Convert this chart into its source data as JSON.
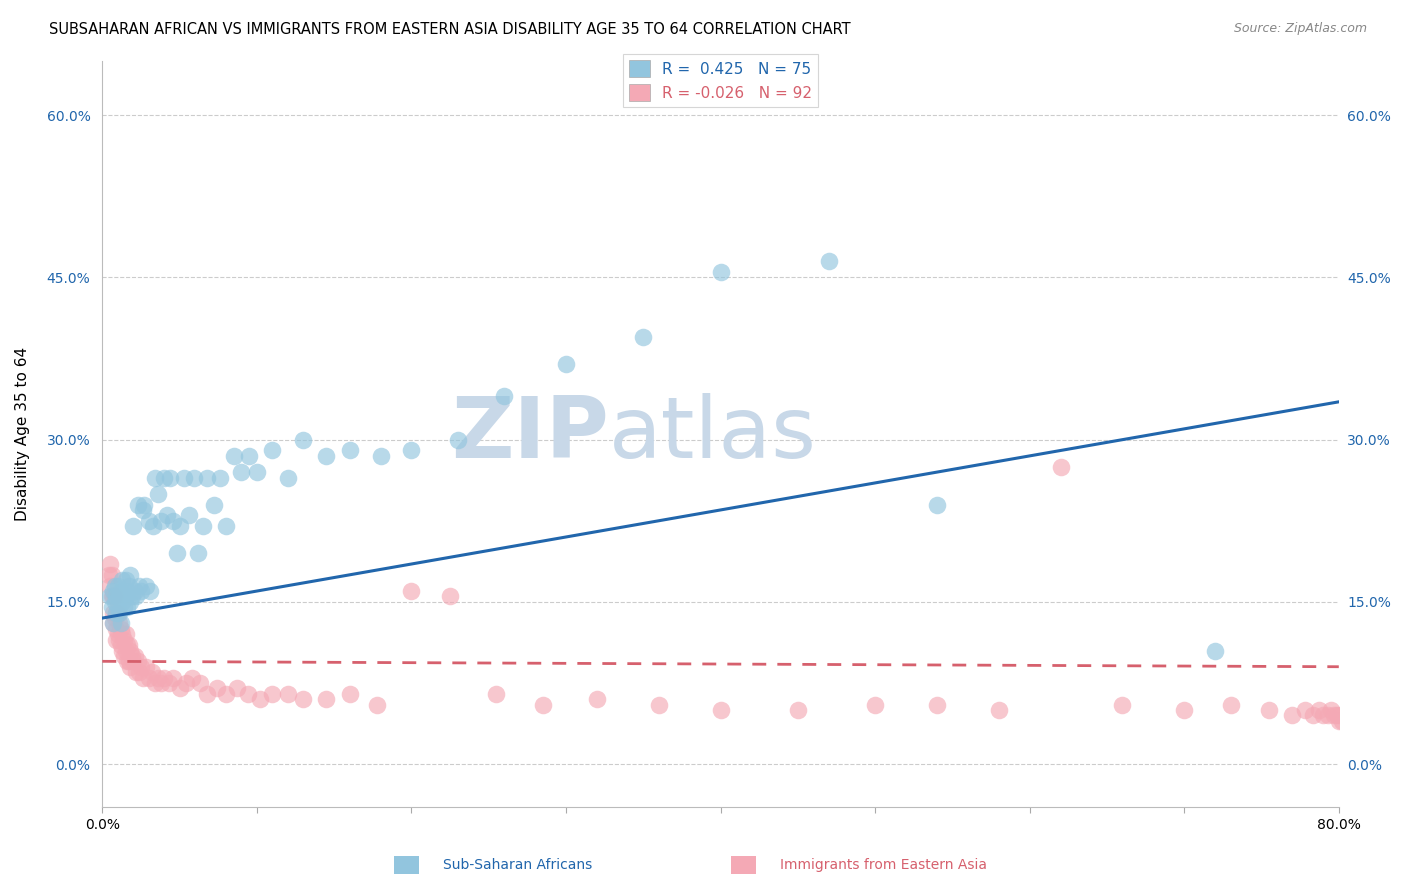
{
  "title": "SUBSAHARAN AFRICAN VS IMMIGRANTS FROM EASTERN ASIA DISABILITY AGE 35 TO 64 CORRELATION CHART",
  "source": "Source: ZipAtlas.com",
  "ylabel": "Disability Age 35 to 64",
  "ylabel_ticks": [
    "0.0%",
    "15.0%",
    "30.0%",
    "45.0%",
    "60.0%"
  ],
  "yticks": [
    0.0,
    0.15,
    0.3,
    0.45,
    0.6
  ],
  "xmin": 0.0,
  "xmax": 0.8,
  "ymin": -0.04,
  "ymax": 0.65,
  "blue_color": "#92c5de",
  "pink_color": "#f4a9b5",
  "blue_line_color": "#2166ac",
  "pink_line_color": "#d6606d",
  "watermark_color": "#c8d8e8",
  "r_blue": 0.425,
  "n_blue": 75,
  "r_pink": -0.026,
  "n_pink": 92,
  "blue_scatter_x": [
    0.005,
    0.006,
    0.007,
    0.007,
    0.008,
    0.008,
    0.009,
    0.009,
    0.01,
    0.01,
    0.011,
    0.011,
    0.012,
    0.012,
    0.013,
    0.013,
    0.014,
    0.014,
    0.015,
    0.015,
    0.016,
    0.016,
    0.017,
    0.018,
    0.018,
    0.019,
    0.02,
    0.021,
    0.022,
    0.023,
    0.024,
    0.025,
    0.026,
    0.027,
    0.028,
    0.03,
    0.031,
    0.033,
    0.034,
    0.036,
    0.038,
    0.04,
    0.042,
    0.044,
    0.046,
    0.048,
    0.05,
    0.053,
    0.056,
    0.059,
    0.062,
    0.065,
    0.068,
    0.072,
    0.076,
    0.08,
    0.085,
    0.09,
    0.095,
    0.1,
    0.11,
    0.12,
    0.13,
    0.145,
    0.16,
    0.18,
    0.2,
    0.23,
    0.26,
    0.3,
    0.35,
    0.4,
    0.47,
    0.54,
    0.72
  ],
  "blue_scatter_y": [
    0.155,
    0.145,
    0.16,
    0.13,
    0.15,
    0.165,
    0.14,
    0.155,
    0.145,
    0.165,
    0.155,
    0.14,
    0.16,
    0.13,
    0.15,
    0.17,
    0.145,
    0.155,
    0.17,
    0.155,
    0.16,
    0.145,
    0.165,
    0.15,
    0.175,
    0.155,
    0.22,
    0.16,
    0.155,
    0.24,
    0.165,
    0.16,
    0.235,
    0.24,
    0.165,
    0.225,
    0.16,
    0.22,
    0.265,
    0.25,
    0.225,
    0.265,
    0.23,
    0.265,
    0.225,
    0.195,
    0.22,
    0.265,
    0.23,
    0.265,
    0.195,
    0.22,
    0.265,
    0.24,
    0.265,
    0.22,
    0.285,
    0.27,
    0.285,
    0.27,
    0.29,
    0.265,
    0.3,
    0.285,
    0.29,
    0.285,
    0.29,
    0.3,
    0.34,
    0.37,
    0.395,
    0.455,
    0.465,
    0.24,
    0.105
  ],
  "pink_scatter_x": [
    0.004,
    0.005,
    0.005,
    0.006,
    0.006,
    0.007,
    0.007,
    0.007,
    0.008,
    0.008,
    0.009,
    0.009,
    0.009,
    0.01,
    0.01,
    0.011,
    0.011,
    0.012,
    0.012,
    0.013,
    0.013,
    0.014,
    0.014,
    0.015,
    0.015,
    0.016,
    0.016,
    0.017,
    0.017,
    0.018,
    0.018,
    0.019,
    0.02,
    0.021,
    0.022,
    0.023,
    0.024,
    0.025,
    0.026,
    0.028,
    0.03,
    0.032,
    0.034,
    0.036,
    0.038,
    0.04,
    0.043,
    0.046,
    0.05,
    0.054,
    0.058,
    0.063,
    0.068,
    0.074,
    0.08,
    0.087,
    0.094,
    0.102,
    0.11,
    0.12,
    0.13,
    0.145,
    0.16,
    0.178,
    0.2,
    0.225,
    0.255,
    0.285,
    0.32,
    0.36,
    0.4,
    0.45,
    0.5,
    0.54,
    0.58,
    0.62,
    0.66,
    0.7,
    0.73,
    0.755,
    0.77,
    0.778,
    0.783,
    0.787,
    0.79,
    0.793,
    0.795,
    0.797,
    0.799,
    0.8,
    0.801,
    0.802
  ],
  "pink_scatter_y": [
    0.175,
    0.185,
    0.165,
    0.175,
    0.155,
    0.155,
    0.14,
    0.13,
    0.155,
    0.135,
    0.14,
    0.125,
    0.115,
    0.14,
    0.12,
    0.13,
    0.115,
    0.125,
    0.11,
    0.12,
    0.105,
    0.115,
    0.1,
    0.12,
    0.105,
    0.11,
    0.095,
    0.11,
    0.095,
    0.105,
    0.09,
    0.1,
    0.095,
    0.1,
    0.085,
    0.095,
    0.085,
    0.09,
    0.08,
    0.09,
    0.08,
    0.085,
    0.075,
    0.08,
    0.075,
    0.08,
    0.075,
    0.08,
    0.07,
    0.075,
    0.08,
    0.075,
    0.065,
    0.07,
    0.065,
    0.07,
    0.065,
    0.06,
    0.065,
    0.065,
    0.06,
    0.06,
    0.065,
    0.055,
    0.16,
    0.155,
    0.065,
    0.055,
    0.06,
    0.055,
    0.05,
    0.05,
    0.055,
    0.055,
    0.05,
    0.275,
    0.055,
    0.05,
    0.055,
    0.05,
    0.045,
    0.05,
    0.045,
    0.05,
    0.045,
    0.045,
    0.05,
    0.045,
    0.045,
    0.04,
    0.045,
    0.04
  ]
}
